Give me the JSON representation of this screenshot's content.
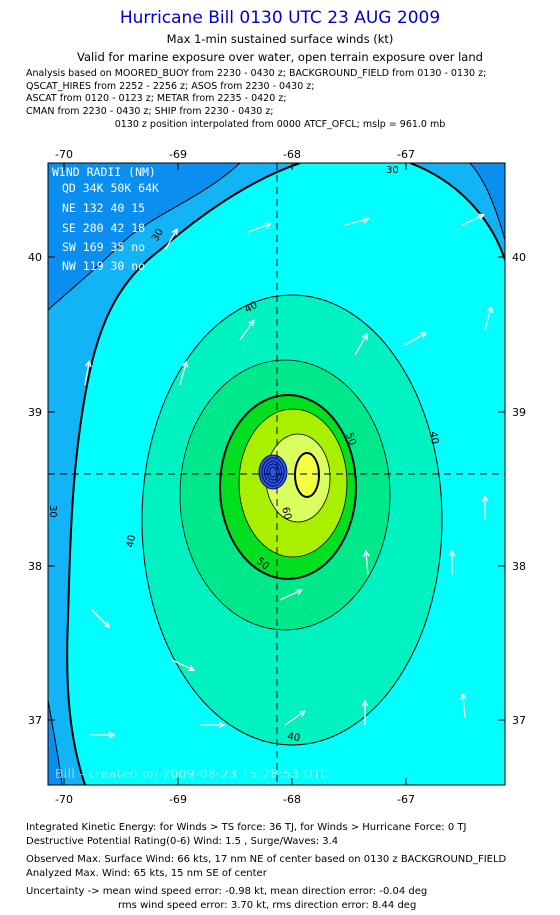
{
  "header": {
    "title": "Hurricane Bill 0130 UTC 23 AUG 2009",
    "subtitle1": "Max 1-min sustained surface winds (kt)",
    "subtitle2": "Valid for marine exposure over water, open terrain exposure over land",
    "analysis_lines": [
      "Analysis based on  MOORED_BUOY from 2230 - 0430 z;  BACKGROUND_FIELD from 0130 - 0130 z;",
      "QSCAT_HIRES from 2252 - 2256 z;  ASOS from 2230 - 0430 z;",
      "ASCAT from 0120 - 0123 z;  METAR from 2235 - 0420 z;",
      "CMAN from 2230 - 0430 z;  SHIP from 2230 - 0430 z;"
    ],
    "position_note": "0130 z position interpolated from 0000 ATCF_OFCL; mslp = 961.0 mb"
  },
  "map": {
    "lon_ticks": [
      "-70",
      "-69",
      "-68",
      "-67"
    ],
    "lat_ticks": [
      "40",
      "39",
      "38",
      "37"
    ],
    "center": {
      "lon": -68.0,
      "lat": 38.6
    },
    "colors": {
      "lt30": "#0a8ef0",
      "c30_34": "#12b4f6",
      "c34_40": "#00ffff",
      "c40_45": "#00f2c0",
      "c45_50": "#00e88c",
      "c50_55": "#00e020",
      "c55_60": "#a8f000",
      "c60_64": "#dcff60",
      "c64plus": "#f4ff40",
      "arrow": "#ffffff"
    },
    "contour_labels": [
      "30",
      "30",
      "30",
      "40",
      "40",
      "40",
      "40",
      "50",
      "50",
      "60"
    ],
    "credit": "Bill - created on 2009-08-23 15:28:53 UTC",
    "wind_radii": {
      "title": "WIND RADII (NM)",
      "header": "QD 34K 50K 64K",
      "rows": [
        "NE 132  40  15",
        "SE 280  42  18",
        "SW 169  35  no",
        "NW 119  30  no"
      ]
    }
  },
  "footer": {
    "ike": "Integrated Kinetic Energy:  for Winds > TS force: 36 TJ,  for Winds > Hurricane Force: 0 TJ",
    "dpr": "Destructive Potential Rating(0-6)   Wind: 1.5 , Surge/Waves: 3.4",
    "observed": "Observed Max. Surface Wind: 66 kts, 17 nm NE of center based on 0130 z BACKGROUND_FIELD",
    "analyzed": "Analyzed Max. Wind: 65 kts, 15 nm SE of center",
    "uncertainty1": "Uncertainty -> mean wind speed error:  -0.98 kt,   mean direction error:  -0.04 deg",
    "uncertainty2": "rms wind speed error: 3.70 kt,   rms direction error: 8.44 deg"
  }
}
